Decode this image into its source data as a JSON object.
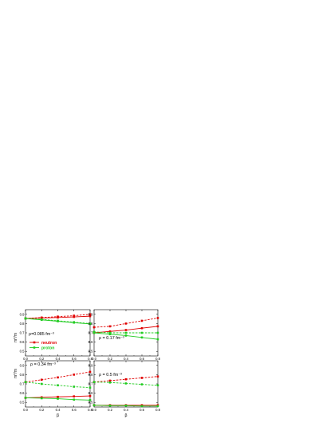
{
  "chart_data": {
    "type": "line",
    "x_label": "β",
    "y_label_top": "m*/m",
    "y_label_bottom": "m*/m",
    "legend": [
      {
        "name": "neutron",
        "color": "#e00000"
      },
      {
        "name": "proton",
        "color": "#22cc22"
      }
    ],
    "x_ticks": [
      "0.0",
      "0.2",
      "0.4",
      "0.6",
      "0.8"
    ],
    "xlim": [
      0,
      0.8
    ],
    "panels": [
      {
        "id": "a",
        "annotation": "ρ=0.085 fm⁻³",
        "ylim": [
          0.45,
          0.95
        ],
        "y_ticks": [
          "0.5",
          "0.6",
          "0.7",
          "0.8",
          "0.9"
        ],
        "x": [
          0.0,
          0.2,
          0.4,
          0.6,
          0.8
        ],
        "series": [
          {
            "legend": "neutron",
            "color": "#e00000",
            "dash": true,
            "values": [
              0.855,
              0.865,
              0.875,
              0.885,
              0.9
            ]
          },
          {
            "legend": "neutron",
            "color": "#e00000",
            "dash": false,
            "values": [
              0.855,
              0.86,
              0.865,
              0.872,
              0.88
            ]
          },
          {
            "legend": "proton",
            "color": "#22cc22",
            "dash": true,
            "values": [
              0.855,
              0.845,
              0.83,
              0.815,
              0.8
            ]
          },
          {
            "legend": "proton",
            "color": "#22cc22",
            "dash": false,
            "values": [
              0.855,
              0.84,
              0.825,
              0.81,
              0.795
            ]
          }
        ]
      },
      {
        "id": "b",
        "annotation": "ρ = 0.17 fm⁻³",
        "ylim": [
          0.45,
          0.95
        ],
        "y_ticks": [
          "0.5",
          "0.6",
          "0.7",
          "0.8",
          "0.9"
        ],
        "x": [
          0.0,
          0.2,
          0.4,
          0.6,
          0.8
        ],
        "series": [
          {
            "legend": "neutron",
            "color": "#e00000",
            "dash": true,
            "values": [
              0.76,
              0.77,
              0.8,
              0.83,
              0.86
            ]
          },
          {
            "legend": "neutron",
            "color": "#e00000",
            "dash": false,
            "values": [
              0.7,
              0.715,
              0.73,
              0.75,
              0.77
            ]
          },
          {
            "legend": "proton",
            "color": "#22cc22",
            "dash": true,
            "values": [
              0.71,
              0.7,
              0.7,
              0.7,
              0.7
            ]
          },
          {
            "legend": "proton",
            "color": "#22cc22",
            "dash": false,
            "values": [
              0.7,
              0.685,
              0.67,
              0.65,
              0.63
            ]
          }
        ]
      },
      {
        "id": "c",
        "annotation": "ρ = 0.34 fm⁻³",
        "ylim": [
          0.45,
          0.95
        ],
        "y_ticks": [
          "0.5",
          "0.6",
          "0.7",
          "0.8",
          "0.9"
        ],
        "x": [
          0.0,
          0.2,
          0.4,
          0.6,
          0.8
        ],
        "series": [
          {
            "legend": "neutron",
            "color": "#e00000",
            "dash": true,
            "values": [
              0.72,
              0.745,
              0.77,
              0.8,
              0.83
            ]
          },
          {
            "legend": "neutron",
            "color": "#e00000",
            "dash": false,
            "values": [
              0.55,
              0.555,
              0.56,
              0.565,
              0.57
            ]
          },
          {
            "legend": "proton",
            "color": "#22cc22",
            "dash": true,
            "values": [
              0.72,
              0.7,
              0.685,
              0.67,
              0.66
            ]
          },
          {
            "legend": "proton",
            "color": "#22cc22",
            "dash": false,
            "values": [
              0.55,
              0.545,
              0.54,
              0.53,
              0.525
            ]
          }
        ]
      },
      {
        "id": "d",
        "annotation": "ρ = 0.5 fm⁻³",
        "ylim": [
          0.45,
          0.95
        ],
        "y_ticks": [
          "0.5",
          "0.6",
          "0.7",
          "0.8",
          "0.9"
        ],
        "x": [
          0.0,
          0.2,
          0.4,
          0.6,
          0.8
        ],
        "series": [
          {
            "legend": "neutron",
            "color": "#e00000",
            "dash": true,
            "values": [
              0.72,
              0.735,
              0.75,
              0.765,
              0.78
            ]
          },
          {
            "legend": "neutron",
            "color": "#e00000",
            "dash": false,
            "values": [
              0.47,
              0.47,
              0.47,
              0.47,
              0.47
            ]
          },
          {
            "legend": "proton",
            "color": "#22cc22",
            "dash": true,
            "values": [
              0.72,
              0.715,
              0.705,
              0.695,
              0.685
            ]
          },
          {
            "legend": "proton",
            "color": "#22cc22",
            "dash": false,
            "values": [
              0.47,
              0.465,
              0.465,
              0.46,
              0.46
            ]
          }
        ]
      }
    ]
  }
}
